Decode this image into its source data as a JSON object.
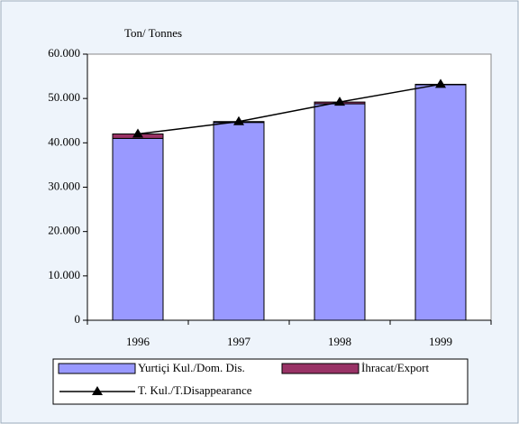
{
  "chart_data": {
    "type": "bar",
    "stacked": true,
    "ylabel": "Ton/ Tonnes",
    "categories": [
      "1996",
      "1997",
      "1998",
      "1999"
    ],
    "series": [
      {
        "name": "Yurtiçi Kul./Dom. Dis.",
        "color": "#9999ff",
        "values": [
          41000,
          44600,
          48800,
          53100
        ]
      },
      {
        "name": "İhracat/Export",
        "color": "#993366",
        "values": [
          1000,
          200,
          400,
          100
        ]
      },
      {
        "name": "T. Kul./T.Disappearance",
        "type": "line",
        "color": "#000000",
        "values": [
          42000,
          44800,
          49200,
          53200
        ]
      }
    ],
    "ylim": [
      0,
      60000
    ],
    "yticks": [
      0,
      {
        "value": 10000,
        "label": "10.000"
      },
      {
        "value": 20000,
        "label": "20.000"
      },
      {
        "value": 30000,
        "label": "30.000"
      },
      {
        "value": 40000,
        "label": "40.000"
      },
      {
        "value": 50000,
        "label": "50.000"
      },
      {
        "value": 60000,
        "label": "60.000"
      }
    ],
    "grid": false
  }
}
